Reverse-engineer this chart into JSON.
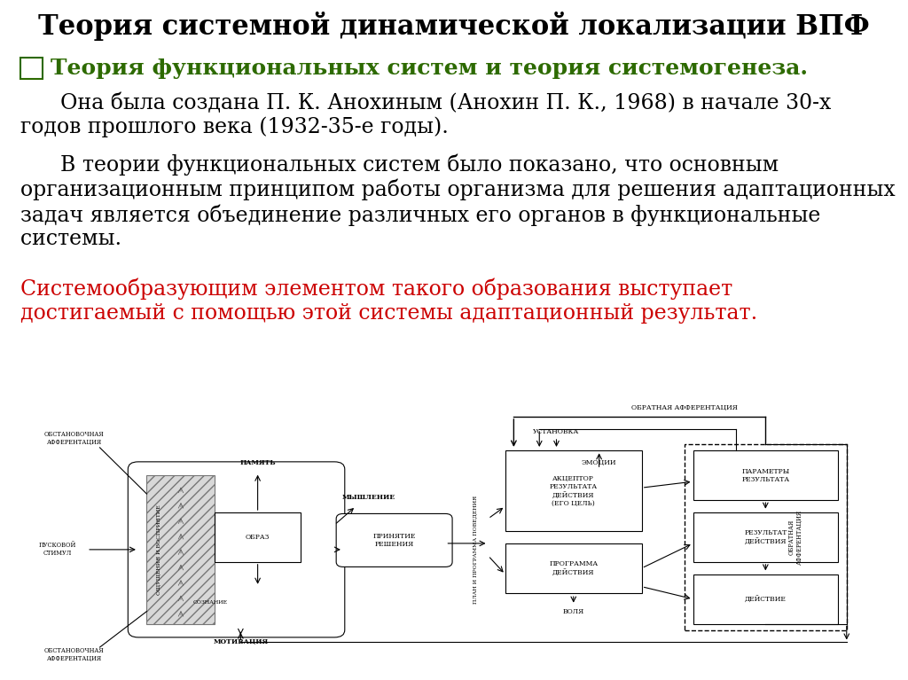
{
  "title": "Теория системной динамической локализации ВПФ",
  "title_fontsize": 22,
  "title_color": "#000000",
  "bullet_text": "Теория функциональных систем и теория системогенеза.",
  "bullet_color": "#2d6a00",
  "bullet_fontsize": 18,
  "para1": "      Она была создана П. К. Анохиным (Анохин П. К., 1968) в начале 30-х\nгодов прошлого века (1932-35-е годы).",
  "para1_color": "#000000",
  "para1_fontsize": 17,
  "para2_black": "      В теории функциональных систем было показано, что основным\nорганизационным принципом работы организма для решения адаптационных\nзадач является объединение различных его органов в функциональные\nсистемы. ",
  "para2_red": "Системообразующим элементом такого образования выступает\nдостигаемый с помощью этой системы адаптационный результат.",
  "para2_fontsize": 17,
  "para2_black_color": "#000000",
  "para2_red_color": "#cc0000",
  "background_color": "#ffffff"
}
